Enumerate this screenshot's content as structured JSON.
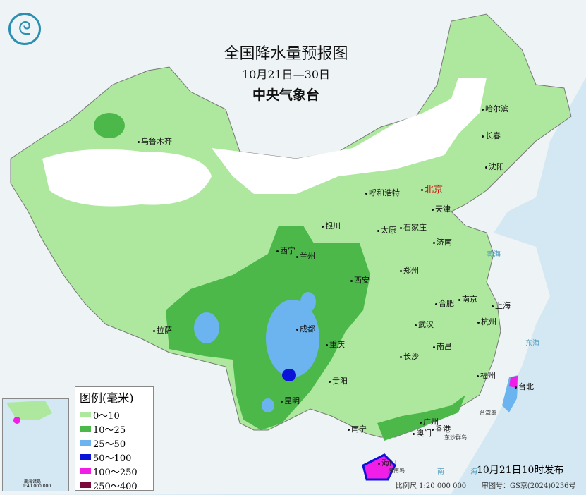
{
  "header": {
    "title": "全国降水量预报图",
    "period": "10月21日—30日",
    "agency": "中央气象台",
    "logo_icon": "cma-logo-icon"
  },
  "legend": {
    "title": "图例(毫米)",
    "items": [
      {
        "label": "0～10",
        "color": "#aee89f"
      },
      {
        "label": "10～25",
        "color": "#4cb84a"
      },
      {
        "label": "25～50",
        "color": "#6bb4ef"
      },
      {
        "label": "50～100",
        "color": "#0a14d8"
      },
      {
        "label": "100～250",
        "color": "#f01ee6"
      },
      {
        "label": "250～400",
        "color": "#7a0a3a"
      }
    ]
  },
  "cities": [
    {
      "name": "乌鲁木齐"
    },
    {
      "name": "哈尔滨"
    },
    {
      "name": "长春"
    },
    {
      "name": "沈阳"
    },
    {
      "name": "北京"
    },
    {
      "name": "天津"
    },
    {
      "name": "呼和浩特"
    },
    {
      "name": "银川"
    },
    {
      "name": "太原"
    },
    {
      "name": "石家庄"
    },
    {
      "name": "济南"
    },
    {
      "name": "西宁"
    },
    {
      "name": "兰州"
    },
    {
      "name": "郑州"
    },
    {
      "name": "西安"
    },
    {
      "name": "合肥"
    },
    {
      "name": "南京"
    },
    {
      "name": "上海"
    },
    {
      "name": "武汉"
    },
    {
      "name": "杭州"
    },
    {
      "name": "成都"
    },
    {
      "name": "重庆"
    },
    {
      "name": "拉萨"
    },
    {
      "name": "南昌"
    },
    {
      "name": "长沙"
    },
    {
      "name": "福州"
    },
    {
      "name": "贵阳"
    },
    {
      "name": "台北"
    },
    {
      "name": "昆明"
    },
    {
      "name": "南宁"
    },
    {
      "name": "广州"
    },
    {
      "name": "澳门"
    },
    {
      "name": "香港"
    },
    {
      "name": "海口"
    }
  ],
  "seas": [
    "黄海",
    "东海",
    "南",
    "海",
    "台湾岛",
    "东沙群岛",
    "海南岛"
  ],
  "footer": {
    "published": "10月21日10时发布",
    "scale": "比例尺 1:20 000 000",
    "audit": "审图号：GS京(2024)0236号"
  },
  "inset": {
    "scale": "1:40 000 000",
    "label": "南海诸岛"
  }
}
